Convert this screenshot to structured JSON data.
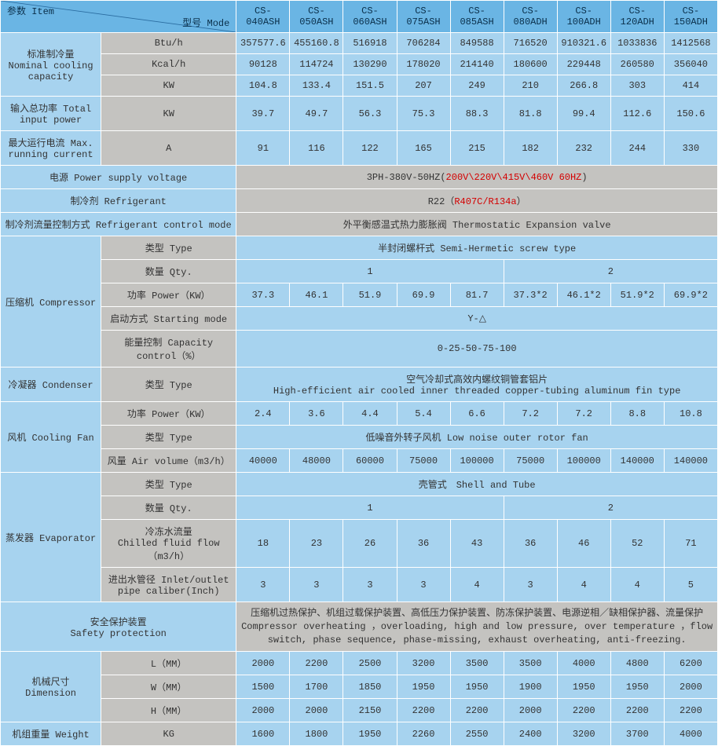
{
  "colors": {
    "header_bg": "#6ab5e4",
    "blue_cell": "#a7d3ef",
    "gray_cell": "#c4c3c0",
    "border": "#ffffff",
    "text": "#333333",
    "red": "#d40000"
  },
  "header": {
    "item": "参数 Item",
    "mode": "型号 Mode",
    "models": [
      "CS-040ASH",
      "CS-050ASH",
      "CS-060ASH",
      "CS-075ASH",
      "CS-085ASH",
      "CS-080ADH",
      "CS-100ADH",
      "CS-120ADH",
      "CS-150ADH"
    ]
  },
  "nominal_cooling": {
    "label": "标准制冷量\nNominal cooling capacity",
    "rows": [
      {
        "unit": "Btu/h",
        "vals": [
          "357577.6",
          "455160.8",
          "516918",
          "706284",
          "849588",
          "716520",
          "910321.6",
          "1033836",
          "1412568"
        ]
      },
      {
        "unit": "Kcal/h",
        "vals": [
          "90128",
          "114724",
          "130290",
          "178020",
          "214140",
          "180600",
          "229448",
          "260580",
          "356040"
        ]
      },
      {
        "unit": "KW",
        "vals": [
          "104.8",
          "133.4",
          "151.5",
          "207",
          "249",
          "210",
          "266.8",
          "303",
          "414"
        ]
      }
    ]
  },
  "total_input_power": {
    "label": "输入总功率 Total input power",
    "unit": "KW",
    "vals": [
      "39.7",
      "49.7",
      "56.3",
      "75.3",
      "88.3",
      "81.8",
      "99.4",
      "112.6",
      "150.6"
    ]
  },
  "max_running_current": {
    "label": "最大运行电流 Max. running current",
    "unit": "A",
    "vals": [
      "91",
      "116",
      "122",
      "165",
      "215",
      "182",
      "232",
      "244",
      "330"
    ]
  },
  "power_supply": {
    "label": "电源 Power supply voltage",
    "prefix": "3PH-380V-50HZ(",
    "red": "200V\\220V\\415V\\460V   60HZ",
    "suffix": ")"
  },
  "refrigerant": {
    "label": "制冷剂 Refrigerant",
    "prefix": "R22（",
    "red": "R407C/R134a",
    "suffix": "）"
  },
  "refrigerant_control": {
    "label": "制冷剂流量控制方式 Refrigerant control mode",
    "value": "外平衡感温式热力膨胀阀 Thermostatic Expansion valve"
  },
  "compressor": {
    "label": "压缩机 Compressor",
    "type_label": "类型 Type",
    "type_value": "半封闭螺杆式 Semi-Hermetic screw type",
    "qty_label": "数量 Qty.",
    "qty_vals": [
      {
        "span": 5,
        "v": "1"
      },
      {
        "span": 4,
        "v": "2"
      }
    ],
    "power_label": "功率 Power（KW）",
    "power_vals": [
      "37.3",
      "46.1",
      "51.9",
      "69.9",
      "81.7",
      "37.3*2",
      "46.1*2",
      "51.9*2",
      "69.9*2"
    ],
    "start_label": "启动方式 Starting mode",
    "start_value": "Y-△",
    "capctrl_label": "能量控制 Capacity control（%）",
    "capctrl_value": "0-25-50-75-100"
  },
  "condenser": {
    "label": "冷凝器 Condenser",
    "type_label": "类型 Type",
    "type_value_l1": "空气冷却式高效内螺纹铜管套铝片",
    "type_value_l2": "High-efficient air cooled inner threaded copper-tubing aluminum fin type"
  },
  "cooling_fan": {
    "label": "风机 Cooling Fan",
    "power_label": "功率 Power（KW）",
    "power_vals": [
      "2.4",
      "3.6",
      "4.4",
      "5.4",
      "6.6",
      "7.2",
      "7.2",
      "8.8",
      "10.8"
    ],
    "type_label": "类型 Type",
    "type_value": "低噪音外转子风机 Low noise outer rotor fan",
    "air_label": "风量 Air volume（m3/h）",
    "air_vals": [
      "40000",
      "48000",
      "60000",
      "75000",
      "100000",
      "75000",
      "100000",
      "140000",
      "140000"
    ]
  },
  "evaporator": {
    "label": "蒸发器 Evaporator",
    "type_label": "类型 Type",
    "type_value": "壳管式　Shell and Tube",
    "qty_label": "数量 Qty.",
    "qty_vals": [
      {
        "span": 5,
        "v": "1"
      },
      {
        "span": 4,
        "v": "2"
      }
    ],
    "flow_label": "冷冻水流量\nChilled fluid flow（m3/h）",
    "flow_vals": [
      "18",
      "23",
      "26",
      "36",
      "43",
      "36",
      "46",
      "52",
      "71"
    ],
    "pipe_label": "进出水管径 Inlet/outlet pipe caliber(Inch)",
    "pipe_vals": [
      "3",
      "3",
      "3",
      "3",
      "4",
      "3",
      "4",
      "4",
      "5"
    ]
  },
  "safety": {
    "label": "安全保护装置\nSafety protection",
    "value": "压缩机过热保护、机组过载保护装置、高低压力保护装置、防冻保护装置、电源逆相／缺相保护器、流量保护 Compressor overheating ，overloading, high and low pressure, over temperature ，flow switch, phase sequence, phase-missing, exhaust overheating, anti-freezing."
  },
  "dimension": {
    "label": "机械尺寸\nDimension",
    "rows": [
      {
        "unit": "L（MM）",
        "vals": [
          "2000",
          "2200",
          "2500",
          "3200",
          "3500",
          "3500",
          "4000",
          "4800",
          "6200"
        ]
      },
      {
        "unit": "W（MM）",
        "vals": [
          "1500",
          "1700",
          "1850",
          "1950",
          "1950",
          "1900",
          "1950",
          "1950",
          "2000"
        ]
      },
      {
        "unit": "H（MM）",
        "vals": [
          "2000",
          "2000",
          "2150",
          "2200",
          "2200",
          "2000",
          "2200",
          "2200",
          "2200"
        ]
      }
    ]
  },
  "weight": {
    "label": "机组重量 Weight",
    "unit": "KG",
    "vals": [
      "1600",
      "1800",
      "1950",
      "2260",
      "2550",
      "2400",
      "3200",
      "3700",
      "4000"
    ]
  }
}
